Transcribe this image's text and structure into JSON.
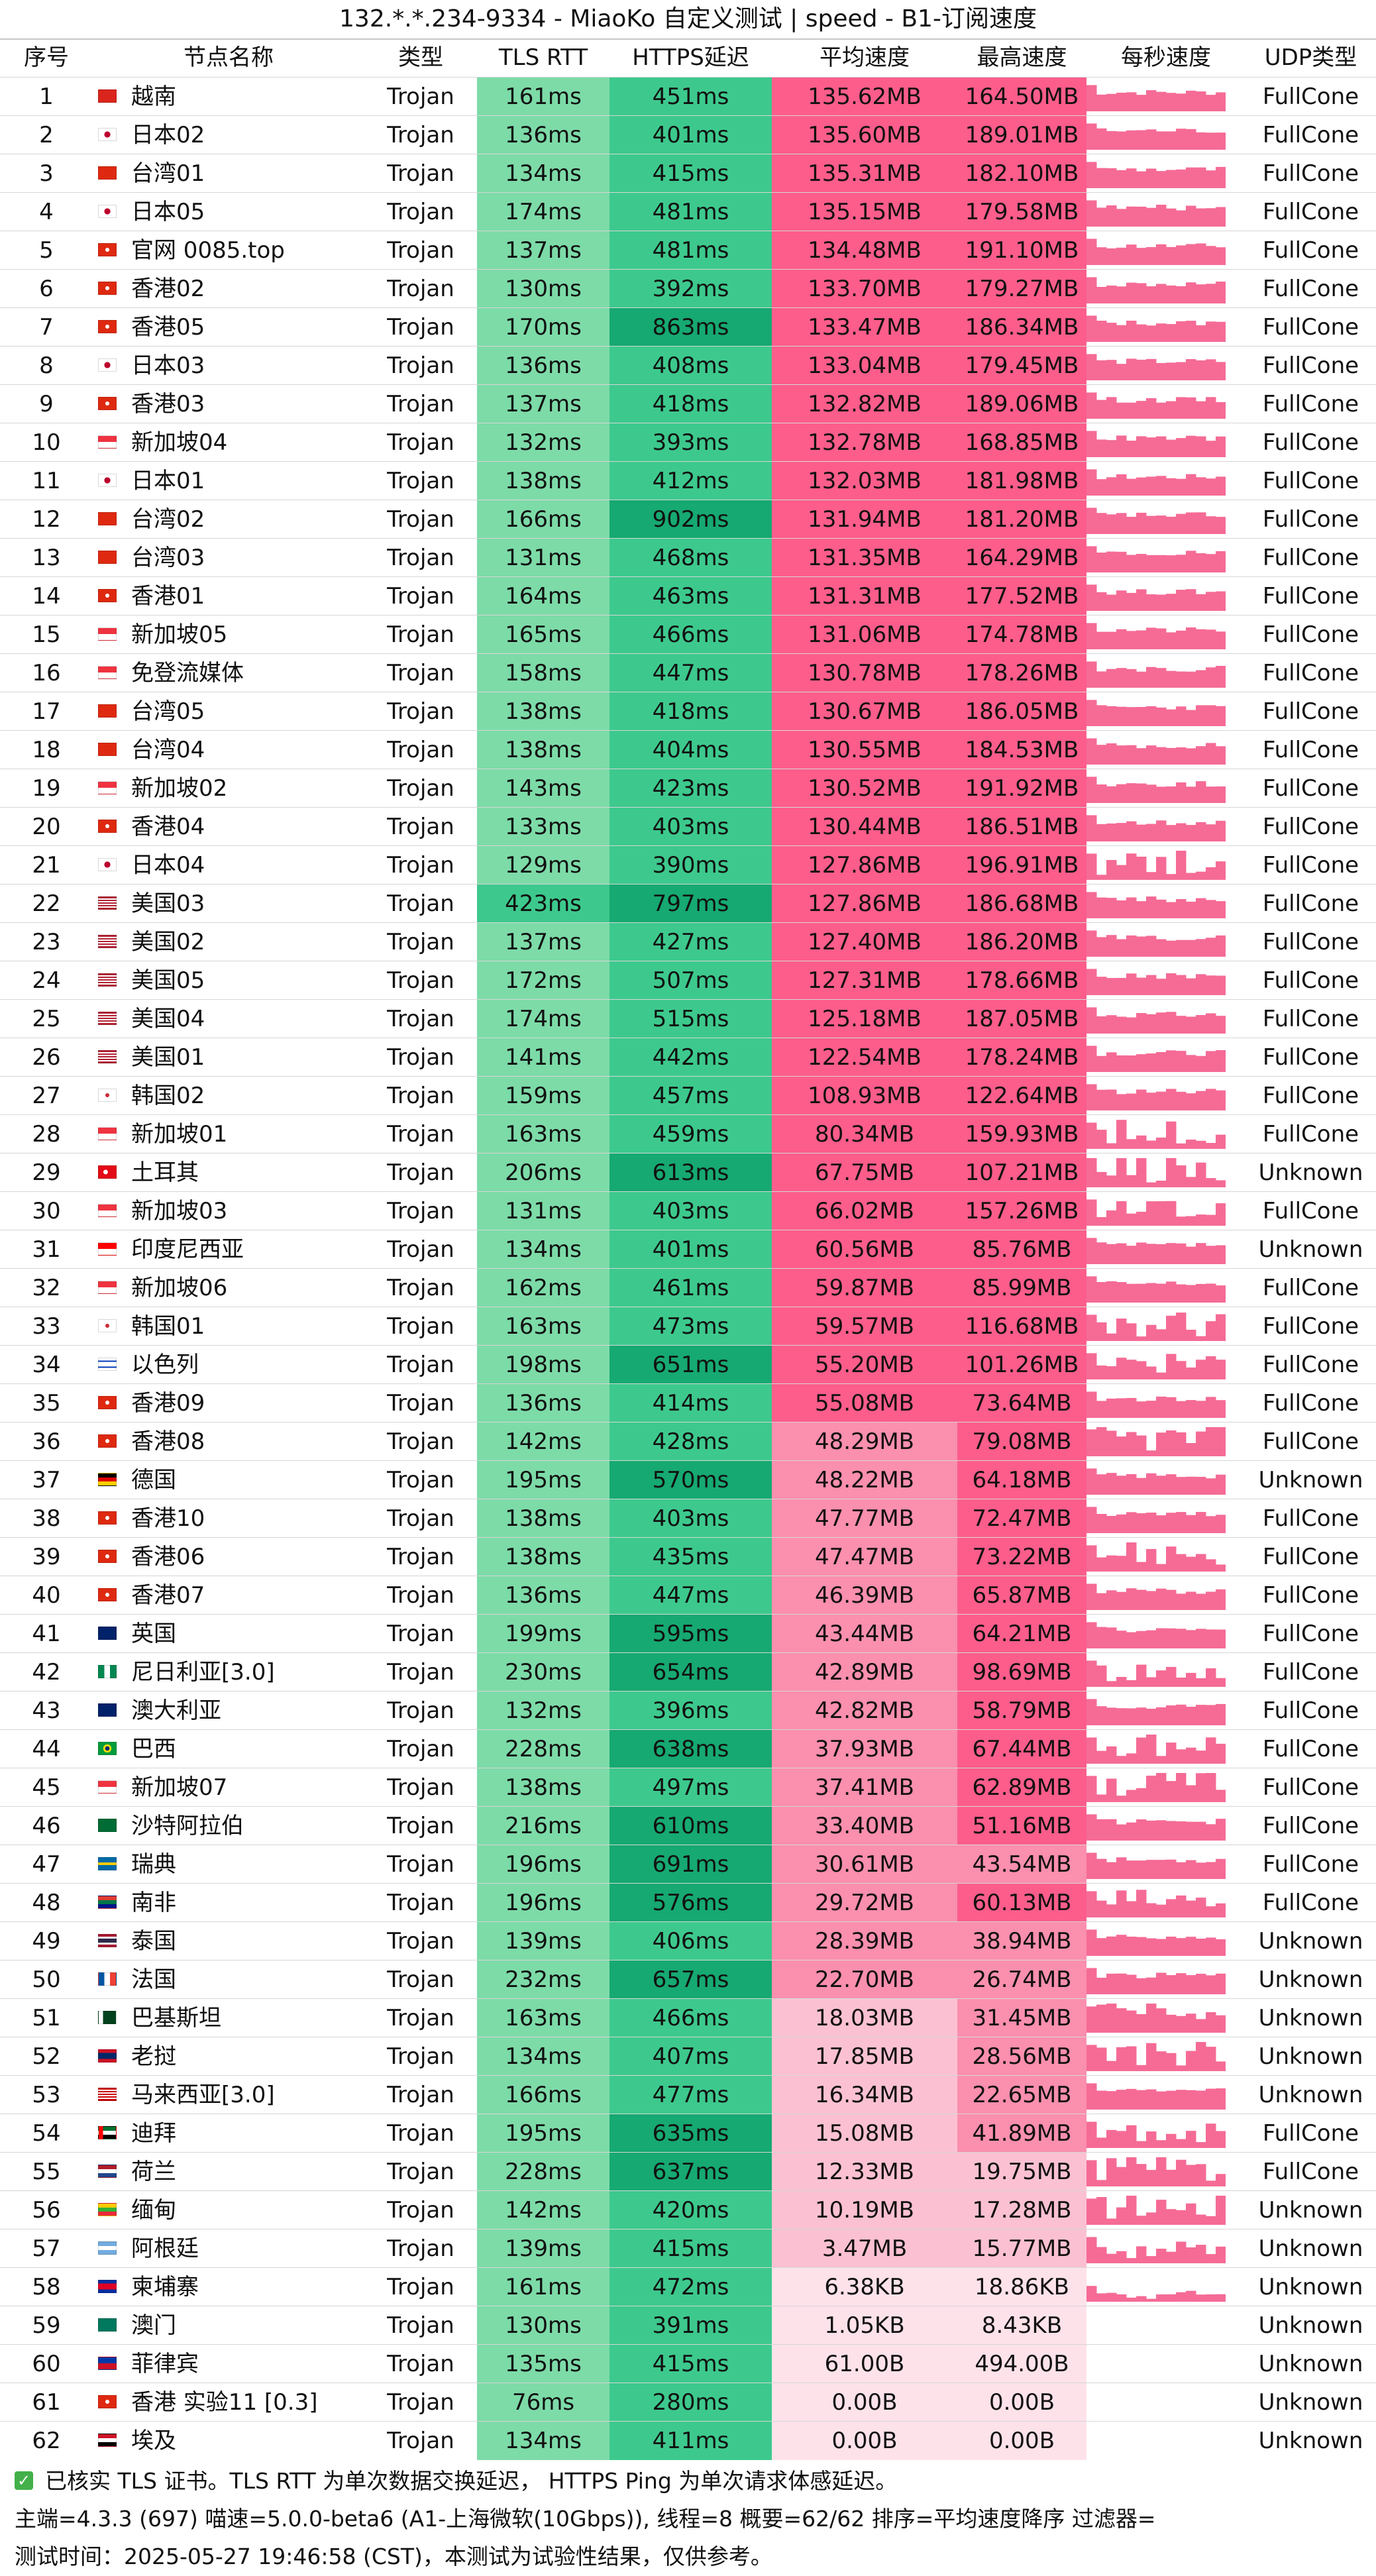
{
  "title": "132.*.*.234-9334 - MiaoKo 自定义测试 | speed - B1-订阅速度",
  "columns": [
    "序号",
    "节点名称",
    "类型",
    "TLS RTT",
    "HTTPS延迟",
    "平均速度",
    "最高速度",
    "每秒速度",
    "UDP类型"
  ],
  "colors": {
    "rtt_light": "#7ddba8",
    "rtt_mid": "#3dc98d",
    "rtt_dark": "#16a972",
    "speed_strong": "#fc5d8b",
    "speed_mid": "#fa8fae",
    "speed_light": "#fbc1d2",
    "speed_faint": "#fde2ea",
    "spark": "#f56b96"
  },
  "rows": [
    {
      "id": "1",
      "name": "越南",
      "flag": "vn",
      "type": "Trojan",
      "rtt": "161ms",
      "https": "451ms",
      "avg": "135.62MB",
      "max": "164.50MB",
      "udp": "FullCone"
    },
    {
      "id": "2",
      "name": "日本02",
      "flag": "jp",
      "type": "Trojan",
      "rtt": "136ms",
      "https": "401ms",
      "avg": "135.60MB",
      "max": "189.01MB",
      "udp": "FullCone"
    },
    {
      "id": "3",
      "name": "台湾01",
      "flag": "cn",
      "type": "Trojan",
      "rtt": "134ms",
      "https": "415ms",
      "avg": "135.31MB",
      "max": "182.10MB",
      "udp": "FullCone"
    },
    {
      "id": "4",
      "name": "日本05",
      "flag": "jp",
      "type": "Trojan",
      "rtt": "174ms",
      "https": "481ms",
      "avg": "135.15MB",
      "max": "179.58MB",
      "udp": "FullCone"
    },
    {
      "id": "5",
      "name": "官网 0085.top",
      "flag": "hk",
      "type": "Trojan",
      "rtt": "137ms",
      "https": "481ms",
      "avg": "134.48MB",
      "max": "191.10MB",
      "udp": "FullCone"
    },
    {
      "id": "6",
      "name": "香港02",
      "flag": "hk",
      "type": "Trojan",
      "rtt": "130ms",
      "https": "392ms",
      "avg": "133.70MB",
      "max": "179.27MB",
      "udp": "FullCone"
    },
    {
      "id": "7",
      "name": "香港05",
      "flag": "hk",
      "type": "Trojan",
      "rtt": "170ms",
      "https": "863ms",
      "avg": "133.47MB",
      "max": "186.34MB",
      "udp": "FullCone"
    },
    {
      "id": "8",
      "name": "日本03",
      "flag": "jp",
      "type": "Trojan",
      "rtt": "136ms",
      "https": "408ms",
      "avg": "133.04MB",
      "max": "179.45MB",
      "udp": "FullCone"
    },
    {
      "id": "9",
      "name": "香港03",
      "flag": "hk",
      "type": "Trojan",
      "rtt": "137ms",
      "https": "418ms",
      "avg": "132.82MB",
      "max": "189.06MB",
      "udp": "FullCone"
    },
    {
      "id": "10",
      "name": "新加坡04",
      "flag": "sg",
      "type": "Trojan",
      "rtt": "132ms",
      "https": "393ms",
      "avg": "132.78MB",
      "max": "168.85MB",
      "udp": "FullCone"
    },
    {
      "id": "11",
      "name": "日本01",
      "flag": "jp",
      "type": "Trojan",
      "rtt": "138ms",
      "https": "412ms",
      "avg": "132.03MB",
      "max": "181.98MB",
      "udp": "FullCone"
    },
    {
      "id": "12",
      "name": "台湾02",
      "flag": "cn",
      "type": "Trojan",
      "rtt": "166ms",
      "https": "902ms",
      "avg": "131.94MB",
      "max": "181.20MB",
      "udp": "FullCone"
    },
    {
      "id": "13",
      "name": "台湾03",
      "flag": "cn",
      "type": "Trojan",
      "rtt": "131ms",
      "https": "468ms",
      "avg": "131.35MB",
      "max": "164.29MB",
      "udp": "FullCone"
    },
    {
      "id": "14",
      "name": "香港01",
      "flag": "hk",
      "type": "Trojan",
      "rtt": "164ms",
      "https": "463ms",
      "avg": "131.31MB",
      "max": "177.52MB",
      "udp": "FullCone"
    },
    {
      "id": "15",
      "name": "新加坡05",
      "flag": "sg",
      "type": "Trojan",
      "rtt": "165ms",
      "https": "466ms",
      "avg": "131.06MB",
      "max": "174.78MB",
      "udp": "FullCone"
    },
    {
      "id": "16",
      "name": "免登流媒体",
      "flag": "sg",
      "type": "Trojan",
      "rtt": "158ms",
      "https": "447ms",
      "avg": "130.78MB",
      "max": "178.26MB",
      "udp": "FullCone"
    },
    {
      "id": "17",
      "name": "台湾05",
      "flag": "cn",
      "type": "Trojan",
      "rtt": "138ms",
      "https": "418ms",
      "avg": "130.67MB",
      "max": "186.05MB",
      "udp": "FullCone"
    },
    {
      "id": "18",
      "name": "台湾04",
      "flag": "cn",
      "type": "Trojan",
      "rtt": "138ms",
      "https": "404ms",
      "avg": "130.55MB",
      "max": "184.53MB",
      "udp": "FullCone"
    },
    {
      "id": "19",
      "name": "新加坡02",
      "flag": "sg",
      "type": "Trojan",
      "rtt": "143ms",
      "https": "423ms",
      "avg": "130.52MB",
      "max": "191.92MB",
      "udp": "FullCone"
    },
    {
      "id": "20",
      "name": "香港04",
      "flag": "hk",
      "type": "Trojan",
      "rtt": "133ms",
      "https": "403ms",
      "avg": "130.44MB",
      "max": "186.51MB",
      "udp": "FullCone"
    },
    {
      "id": "21",
      "name": "日本04",
      "flag": "jp",
      "type": "Trojan",
      "rtt": "129ms",
      "https": "390ms",
      "avg": "127.86MB",
      "max": "196.91MB",
      "udp": "FullCone"
    },
    {
      "id": "22",
      "name": "美国03",
      "flag": "us",
      "type": "Trojan",
      "rtt": "423ms",
      "https": "797ms",
      "avg": "127.86MB",
      "max": "186.68MB",
      "udp": "FullCone"
    },
    {
      "id": "23",
      "name": "美国02",
      "flag": "us",
      "type": "Trojan",
      "rtt": "137ms",
      "https": "427ms",
      "avg": "127.40MB",
      "max": "186.20MB",
      "udp": "FullCone"
    },
    {
      "id": "24",
      "name": "美国05",
      "flag": "us",
      "type": "Trojan",
      "rtt": "172ms",
      "https": "507ms",
      "avg": "127.31MB",
      "max": "178.66MB",
      "udp": "FullCone"
    },
    {
      "id": "25",
      "name": "美国04",
      "flag": "us",
      "type": "Trojan",
      "rtt": "174ms",
      "https": "515ms",
      "avg": "125.18MB",
      "max": "187.05MB",
      "udp": "FullCone"
    },
    {
      "id": "26",
      "name": "美国01",
      "flag": "us",
      "type": "Trojan",
      "rtt": "141ms",
      "https": "442ms",
      "avg": "122.54MB",
      "max": "178.24MB",
      "udp": "FullCone"
    },
    {
      "id": "27",
      "name": "韩国02",
      "flag": "kr",
      "type": "Trojan",
      "rtt": "159ms",
      "https": "457ms",
      "avg": "108.93MB",
      "max": "122.64MB",
      "udp": "FullCone"
    },
    {
      "id": "28",
      "name": "新加坡01",
      "flag": "sg",
      "type": "Trojan",
      "rtt": "163ms",
      "https": "459ms",
      "avg": "80.34MB",
      "max": "159.93MB",
      "udp": "FullCone"
    },
    {
      "id": "29",
      "name": "土耳其",
      "flag": "tr",
      "type": "Trojan",
      "rtt": "206ms",
      "https": "613ms",
      "avg": "67.75MB",
      "max": "107.21MB",
      "udp": "Unknown"
    },
    {
      "id": "30",
      "name": "新加坡03",
      "flag": "sg",
      "type": "Trojan",
      "rtt": "131ms",
      "https": "403ms",
      "avg": "66.02MB",
      "max": "157.26MB",
      "udp": "FullCone"
    },
    {
      "id": "31",
      "name": "印度尼西亚",
      "flag": "id",
      "type": "Trojan",
      "rtt": "134ms",
      "https": "401ms",
      "avg": "60.56MB",
      "max": "85.76MB",
      "udp": "Unknown"
    },
    {
      "id": "32",
      "name": "新加坡06",
      "flag": "sg",
      "type": "Trojan",
      "rtt": "162ms",
      "https": "461ms",
      "avg": "59.87MB",
      "max": "85.99MB",
      "udp": "FullCone"
    },
    {
      "id": "33",
      "name": "韩国01",
      "flag": "kr",
      "type": "Trojan",
      "rtt": "163ms",
      "https": "473ms",
      "avg": "59.57MB",
      "max": "116.68MB",
      "udp": "FullCone"
    },
    {
      "id": "34",
      "name": "以色列",
      "flag": "il",
      "type": "Trojan",
      "rtt": "198ms",
      "https": "651ms",
      "avg": "55.20MB",
      "max": "101.26MB",
      "udp": "FullCone"
    },
    {
      "id": "35",
      "name": "香港09",
      "flag": "hk",
      "type": "Trojan",
      "rtt": "136ms",
      "https": "414ms",
      "avg": "55.08MB",
      "max": "73.64MB",
      "udp": "FullCone"
    },
    {
      "id": "36",
      "name": "香港08",
      "flag": "hk",
      "type": "Trojan",
      "rtt": "142ms",
      "https": "428ms",
      "avg": "48.29MB",
      "max": "79.08MB",
      "udp": "FullCone"
    },
    {
      "id": "37",
      "name": "德国",
      "flag": "de",
      "type": "Trojan",
      "rtt": "195ms",
      "https": "570ms",
      "avg": "48.22MB",
      "max": "64.18MB",
      "udp": "Unknown"
    },
    {
      "id": "38",
      "name": "香港10",
      "flag": "hk",
      "type": "Trojan",
      "rtt": "138ms",
      "https": "403ms",
      "avg": "47.77MB",
      "max": "72.47MB",
      "udp": "FullCone"
    },
    {
      "id": "39",
      "name": "香港06",
      "flag": "hk",
      "type": "Trojan",
      "rtt": "138ms",
      "https": "435ms",
      "avg": "47.47MB",
      "max": "73.22MB",
      "udp": "FullCone"
    },
    {
      "id": "40",
      "name": "香港07",
      "flag": "hk",
      "type": "Trojan",
      "rtt": "136ms",
      "https": "447ms",
      "avg": "46.39MB",
      "max": "65.87MB",
      "udp": "FullCone"
    },
    {
      "id": "41",
      "name": "英国",
      "flag": "gb",
      "type": "Trojan",
      "rtt": "199ms",
      "https": "595ms",
      "avg": "43.44MB",
      "max": "64.21MB",
      "udp": "FullCone"
    },
    {
      "id": "42",
      "name": "尼日利亚[3.0]",
      "flag": "ng",
      "type": "Trojan",
      "rtt": "230ms",
      "https": "654ms",
      "avg": "42.89MB",
      "max": "98.69MB",
      "udp": "FullCone"
    },
    {
      "id": "43",
      "name": "澳大利亚",
      "flag": "au",
      "type": "Trojan",
      "rtt": "132ms",
      "https": "396ms",
      "avg": "42.82MB",
      "max": "58.79MB",
      "udp": "FullCone"
    },
    {
      "id": "44",
      "name": "巴西",
      "flag": "br",
      "type": "Trojan",
      "rtt": "228ms",
      "https": "638ms",
      "avg": "37.93MB",
      "max": "67.44MB",
      "udp": "FullCone"
    },
    {
      "id": "45",
      "name": "新加坡07",
      "flag": "sg",
      "type": "Trojan",
      "rtt": "138ms",
      "https": "497ms",
      "avg": "37.41MB",
      "max": "62.89MB",
      "udp": "FullCone"
    },
    {
      "id": "46",
      "name": "沙特阿拉伯",
      "flag": "sa",
      "type": "Trojan",
      "rtt": "216ms",
      "https": "610ms",
      "avg": "33.40MB",
      "max": "51.16MB",
      "udp": "FullCone"
    },
    {
      "id": "47",
      "name": "瑞典",
      "flag": "se",
      "type": "Trojan",
      "rtt": "196ms",
      "https": "691ms",
      "avg": "30.61MB",
      "max": "43.54MB",
      "udp": "FullCone"
    },
    {
      "id": "48",
      "name": "南非",
      "flag": "za",
      "type": "Trojan",
      "rtt": "196ms",
      "https": "576ms",
      "avg": "29.72MB",
      "max": "60.13MB",
      "udp": "FullCone"
    },
    {
      "id": "49",
      "name": "泰国",
      "flag": "th",
      "type": "Trojan",
      "rtt": "139ms",
      "https": "406ms",
      "avg": "28.39MB",
      "max": "38.94MB",
      "udp": "Unknown"
    },
    {
      "id": "50",
      "name": "法国",
      "flag": "fr",
      "type": "Trojan",
      "rtt": "232ms",
      "https": "657ms",
      "avg": "22.70MB",
      "max": "26.74MB",
      "udp": "Unknown"
    },
    {
      "id": "51",
      "name": "巴基斯坦",
      "flag": "pk",
      "type": "Trojan",
      "rtt": "163ms",
      "https": "466ms",
      "avg": "18.03MB",
      "max": "31.45MB",
      "udp": "Unknown"
    },
    {
      "id": "52",
      "name": "老挝",
      "flag": "la",
      "type": "Trojan",
      "rtt": "134ms",
      "https": "407ms",
      "avg": "17.85MB",
      "max": "28.56MB",
      "udp": "Unknown"
    },
    {
      "id": "53",
      "name": "马来西亚[3.0]",
      "flag": "my",
      "type": "Trojan",
      "rtt": "166ms",
      "https": "477ms",
      "avg": "16.34MB",
      "max": "22.65MB",
      "udp": "Unknown"
    },
    {
      "id": "54",
      "name": "迪拜",
      "flag": "ae",
      "type": "Trojan",
      "rtt": "195ms",
      "https": "635ms",
      "avg": "15.08MB",
      "max": "41.89MB",
      "udp": "FullCone"
    },
    {
      "id": "55",
      "name": "荷兰",
      "flag": "nl",
      "type": "Trojan",
      "rtt": "228ms",
      "https": "637ms",
      "avg": "12.33MB",
      "max": "19.75MB",
      "udp": "FullCone"
    },
    {
      "id": "56",
      "name": "缅甸",
      "flag": "mm",
      "type": "Trojan",
      "rtt": "142ms",
      "https": "420ms",
      "avg": "10.19MB",
      "max": "17.28MB",
      "udp": "Unknown"
    },
    {
      "id": "57",
      "name": "阿根廷",
      "flag": "ar",
      "type": "Trojan",
      "rtt": "139ms",
      "https": "415ms",
      "avg": "3.47MB",
      "max": "15.77MB",
      "udp": "Unknown"
    },
    {
      "id": "58",
      "name": "柬埔寨",
      "flag": "kh",
      "type": "Trojan",
      "rtt": "161ms",
      "https": "472ms",
      "avg": "6.38KB",
      "max": "18.86KB",
      "udp": "Unknown"
    },
    {
      "id": "59",
      "name": "澳门",
      "flag": "mo",
      "type": "Trojan",
      "rtt": "130ms",
      "https": "391ms",
      "avg": "1.05KB",
      "max": "8.43KB",
      "udp": "Unknown"
    },
    {
      "id": "60",
      "name": "菲律宾",
      "flag": "ph",
      "type": "Trojan",
      "rtt": "135ms",
      "https": "415ms",
      "avg": "61.00B",
      "max": "494.00B",
      "udp": "Unknown"
    },
    {
      "id": "61",
      "name": "香港 实验11 [0.3]",
      "flag": "hk",
      "type": "Trojan",
      "rtt": "76ms",
      "https": "280ms",
      "avg": "0.00B",
      "max": "0.00B",
      "udp": "Unknown"
    },
    {
      "id": "62",
      "name": "埃及",
      "flag": "eg",
      "type": "Trojan",
      "rtt": "134ms",
      "https": "411ms",
      "avg": "0.00B",
      "max": "0.00B",
      "udp": "Unknown"
    }
  ],
  "footer": {
    "line1": "已核实 TLS 证书。TLS RTT 为单次数据交换延迟， HTTPS Ping 为单次请求体感延迟。",
    "line2": "主端=4.3.3 (697) 喵速=5.0.0-beta6 (A1-上海微软(10Gbps)), 线程=8 概要=62/62 排序=平均速度降序 过滤器=",
    "line3": "测试时间：2025-05-27 19:46:58 (CST)，本测试为试验性结果，仅供参考。"
  }
}
